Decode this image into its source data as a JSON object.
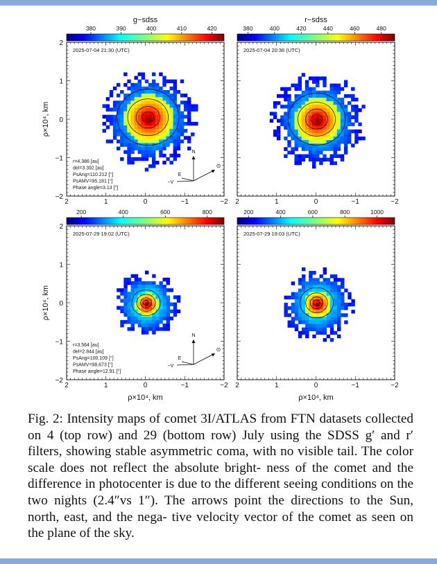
{
  "figure": {
    "panels": [
      {
        "id": "g-jul04",
        "filter_title": "g−sdss",
        "timestamp": "2025-07-04 21:30 (UTC)",
        "colorbar_ticks": [
          "380",
          "390",
          "400",
          "410",
          "420"
        ],
        "colorbar_values": [
          380,
          390,
          400,
          410,
          420
        ],
        "colorbar_range": [
          372,
          424
        ],
        "y_ticks": [
          "2",
          "1",
          "0",
          "−1",
          "−2"
        ],
        "x_ticks": [
          "2",
          "1",
          "0",
          "−1",
          "−2"
        ],
        "y_axis_label": "ρ×10⁴, km",
        "x_axis_label": "",
        "coma_extent": 0.48,
        "core_extent": 0.13,
        "core_offset": [
          -0.05,
          0.05
        ],
        "info": [
          "r=4.386 [au]",
          "del=3.392 [au]",
          "PsAng=110.212 [°]",
          "PsAMV=95.181 [°]",
          "Phase angle=3.13 [°]"
        ],
        "arrows": {
          "north": "N",
          "east": "E",
          "neg_velocity": "−V",
          "sun": "⊙"
        }
      },
      {
        "id": "r-jul04",
        "filter_title": "r−sdss",
        "timestamp": "2025-07-04 20:36 (UTC)",
        "colorbar_ticks": [
          "380",
          "400",
          "420",
          "440",
          "460",
          "480"
        ],
        "colorbar_values": [
          380,
          400,
          420,
          440,
          460,
          480
        ],
        "colorbar_range": [
          372,
          490
        ],
        "y_ticks": [],
        "x_ticks": [
          "2",
          "1",
          "0",
          "−1",
          "−2"
        ],
        "y_axis_label": "",
        "x_axis_label": "",
        "coma_extent": 0.46,
        "core_extent": 0.12,
        "core_offset": [
          0.0,
          0.0
        ],
        "info": [],
        "arrows": null
      },
      {
        "id": "g-jul29",
        "filter_title": "",
        "timestamp": "2025-07-29 19:02 (UTC)",
        "colorbar_ticks": [
          "200",
          "400",
          "600",
          "800"
        ],
        "colorbar_values": [
          200,
          400,
          600,
          800
        ],
        "colorbar_range": [
          130,
          880
        ],
        "y_ticks": [
          "2",
          "1",
          "0",
          "−1",
          "−2"
        ],
        "x_ticks": [
          "2",
          "1",
          "0",
          "−1",
          "−2"
        ],
        "y_axis_label": "ρ×10⁴, km",
        "x_axis_label": "ρ×10⁴, km",
        "coma_extent": 0.33,
        "core_extent": 0.06,
        "core_offset": [
          0.0,
          0.0
        ],
        "info": [
          "r=3.564 [au]",
          "del=2.844 [au]",
          "PsAng=100.109 [°]",
          "PsAMV=98.673 [°]",
          "Phase angle=12.91 [°]"
        ],
        "arrows": {
          "north": "N",
          "east": "E",
          "neg_velocity": "−V",
          "sun": "⊙"
        }
      },
      {
        "id": "r-jul29",
        "filter_title": "",
        "timestamp": "2025-07-29 19:03 (UTC)",
        "colorbar_ticks": [
          "200",
          "400",
          "600",
          "800",
          "1000"
        ],
        "colorbar_values": [
          200,
          400,
          600,
          800,
          1000
        ],
        "colorbar_range": [
          130,
          1110
        ],
        "y_ticks": [],
        "x_ticks": [
          "2",
          "1",
          "0",
          "−1",
          "−2"
        ],
        "y_axis_label": "",
        "x_axis_label": "ρ×10⁴, km",
        "coma_extent": 0.36,
        "core_extent": 0.07,
        "core_offset": [
          0.0,
          0.0
        ],
        "info": [],
        "arrows": null
      }
    ],
    "x_range": [
      2,
      -2
    ],
    "y_range": [
      -2,
      2
    ]
  },
  "caption": "Fig. 2: Intensity maps of comet 3I/ATLAS from FTN datasets collected on 4 (top row) and 29 (bottom row) July using the SDSS g′ and r′ filters, showing stable asymmetric coma, with no visible tail. The color scale does not reflect the absolute bright- ness of the comet and the difference in photocenter is due to the different seeing conditions on the two nights (2.4″vs 1″). The arrows point the directions to the Sun, north, east, and the nega- tive velocity vector of the comet as seen on the plane of the sky."
}
